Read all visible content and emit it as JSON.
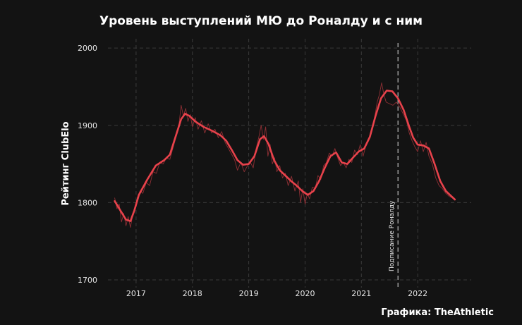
{
  "chart_data": {
    "type": "line",
    "title": "Уровень выступлений МЮ до Роналду и с ним",
    "xlabel": "",
    "ylabel": "Рейтинг ClubElo",
    "xlim": [
      2016.5,
      2022.95
    ],
    "ylim": [
      1690,
      2012
    ],
    "yticks": [
      1700,
      1800,
      1900,
      2000
    ],
    "xticks": [
      2017,
      2018,
      2019,
      2020,
      2021,
      2022
    ],
    "grid": true,
    "series": [
      {
        "kind": "smoothed",
        "color": "#e8424b",
        "points": [
          [
            2016.62,
            1802
          ],
          [
            2016.72,
            1790
          ],
          [
            2016.82,
            1778
          ],
          [
            2016.9,
            1776
          ],
          [
            2016.97,
            1790
          ],
          [
            2017.05,
            1810
          ],
          [
            2017.2,
            1830
          ],
          [
            2017.35,
            1848
          ],
          [
            2017.5,
            1855
          ],
          [
            2017.6,
            1862
          ],
          [
            2017.7,
            1885
          ],
          [
            2017.8,
            1908
          ],
          [
            2017.87,
            1915
          ],
          [
            2017.95,
            1912
          ],
          [
            2018.05,
            1905
          ],
          [
            2018.2,
            1898
          ],
          [
            2018.35,
            1893
          ],
          [
            2018.5,
            1887
          ],
          [
            2018.6,
            1880
          ],
          [
            2018.7,
            1868
          ],
          [
            2018.8,
            1855
          ],
          [
            2018.9,
            1849
          ],
          [
            2019.0,
            1850
          ],
          [
            2019.1,
            1860
          ],
          [
            2019.2,
            1882
          ],
          [
            2019.27,
            1886
          ],
          [
            2019.35,
            1876
          ],
          [
            2019.45,
            1855
          ],
          [
            2019.55,
            1842
          ],
          [
            2019.65,
            1835
          ],
          [
            2019.75,
            1828
          ],
          [
            2019.85,
            1822
          ],
          [
            2019.95,
            1815
          ],
          [
            2020.05,
            1810
          ],
          [
            2020.15,
            1815
          ],
          [
            2020.25,
            1828
          ],
          [
            2020.35,
            1845
          ],
          [
            2020.45,
            1860
          ],
          [
            2020.55,
            1865
          ],
          [
            2020.65,
            1852
          ],
          [
            2020.75,
            1850
          ],
          [
            2020.85,
            1858
          ],
          [
            2020.95,
            1866
          ],
          [
            2021.05,
            1870
          ],
          [
            2021.15,
            1885
          ],
          [
            2021.25,
            1912
          ],
          [
            2021.35,
            1935
          ],
          [
            2021.45,
            1945
          ],
          [
            2021.55,
            1944
          ],
          [
            2021.65,
            1935
          ],
          [
            2021.75,
            1920
          ],
          [
            2021.85,
            1898
          ],
          [
            2021.92,
            1884
          ],
          [
            2022.0,
            1875
          ],
          [
            2022.1,
            1874
          ],
          [
            2022.2,
            1870
          ],
          [
            2022.3,
            1850
          ],
          [
            2022.4,
            1828
          ],
          [
            2022.5,
            1815
          ],
          [
            2022.6,
            1808
          ],
          [
            2022.66,
            1804
          ]
        ]
      },
      {
        "kind": "raw",
        "color": "#a3353b",
        "points": [
          [
            2016.62,
            1806
          ],
          [
            2016.66,
            1792
          ],
          [
            2016.7,
            1798
          ],
          [
            2016.74,
            1775
          ],
          [
            2016.78,
            1786
          ],
          [
            2016.82,
            1770
          ],
          [
            2016.86,
            1782
          ],
          [
            2016.9,
            1768
          ],
          [
            2016.94,
            1784
          ],
          [
            2016.98,
            1790
          ],
          [
            2017.02,
            1806
          ],
          [
            2017.07,
            1815
          ],
          [
            2017.12,
            1812
          ],
          [
            2017.18,
            1826
          ],
          [
            2017.24,
            1822
          ],
          [
            2017.3,
            1840
          ],
          [
            2017.36,
            1838
          ],
          [
            2017.42,
            1852
          ],
          [
            2017.48,
            1850
          ],
          [
            2017.54,
            1858
          ],
          [
            2017.6,
            1856
          ],
          [
            2017.66,
            1872
          ],
          [
            2017.72,
            1888
          ],
          [
            2017.76,
            1900
          ],
          [
            2017.8,
            1926
          ],
          [
            2017.84,
            1912
          ],
          [
            2017.88,
            1922
          ],
          [
            2017.92,
            1905
          ],
          [
            2017.96,
            1914
          ],
          [
            2018.0,
            1898
          ],
          [
            2018.05,
            1910
          ],
          [
            2018.1,
            1895
          ],
          [
            2018.16,
            1906
          ],
          [
            2018.22,
            1890
          ],
          [
            2018.28,
            1902
          ],
          [
            2018.34,
            1890
          ],
          [
            2018.4,
            1895
          ],
          [
            2018.46,
            1884
          ],
          [
            2018.52,
            1892
          ],
          [
            2018.58,
            1878
          ],
          [
            2018.64,
            1870
          ],
          [
            2018.7,
            1862
          ],
          [
            2018.75,
            1855
          ],
          [
            2018.8,
            1842
          ],
          [
            2018.86,
            1852
          ],
          [
            2018.92,
            1840
          ],
          [
            2018.98,
            1848
          ],
          [
            2019.03,
            1852
          ],
          [
            2019.08,
            1845
          ],
          [
            2019.13,
            1870
          ],
          [
            2019.18,
            1885
          ],
          [
            2019.22,
            1900
          ],
          [
            2019.26,
            1882
          ],
          [
            2019.3,
            1898
          ],
          [
            2019.34,
            1860
          ],
          [
            2019.38,
            1875
          ],
          [
            2019.42,
            1850
          ],
          [
            2019.46,
            1858
          ],
          [
            2019.5,
            1840
          ],
          [
            2019.55,
            1848
          ],
          [
            2019.6,
            1832
          ],
          [
            2019.65,
            1838
          ],
          [
            2019.7,
            1822
          ],
          [
            2019.76,
            1834
          ],
          [
            2019.82,
            1815
          ],
          [
            2019.88,
            1828
          ],
          [
            2019.92,
            1800
          ],
          [
            2019.96,
            1818
          ],
          [
            2020.0,
            1798
          ],
          [
            2020.04,
            1812
          ],
          [
            2020.08,
            1805
          ],
          [
            2020.13,
            1820
          ],
          [
            2020.18,
            1818
          ],
          [
            2020.23,
            1835
          ],
          [
            2020.28,
            1830
          ],
          [
            2020.33,
            1848
          ],
          [
            2020.38,
            1852
          ],
          [
            2020.43,
            1864
          ],
          [
            2020.48,
            1860
          ],
          [
            2020.53,
            1870
          ],
          [
            2020.58,
            1858
          ],
          [
            2020.63,
            1848
          ],
          [
            2020.68,
            1852
          ],
          [
            2020.73,
            1845
          ],
          [
            2020.78,
            1856
          ],
          [
            2020.83,
            1852
          ],
          [
            2020.88,
            1868
          ],
          [
            2020.93,
            1862
          ],
          [
            2020.98,
            1875
          ],
          [
            2021.03,
            1860
          ],
          [
            2021.08,
            1874
          ],
          [
            2021.13,
            1880
          ],
          [
            2021.18,
            1895
          ],
          [
            2021.23,
            1908
          ],
          [
            2021.28,
            1930
          ],
          [
            2021.32,
            1940
          ],
          [
            2021.36,
            1955
          ],
          [
            2021.4,
            1940
          ],
          [
            2021.44,
            1930
          ],
          [
            2021.5,
            1928
          ],
          [
            2021.56,
            1926
          ],
          [
            2021.62,
            1930
          ],
          [
            2021.68,
            1924
          ],
          [
            2021.74,
            1915
          ],
          [
            2021.8,
            1906
          ],
          [
            2021.85,
            1890
          ],
          [
            2021.9,
            1880
          ],
          [
            2021.95,
            1872
          ],
          [
            2022.0,
            1866
          ],
          [
            2022.05,
            1880
          ],
          [
            2022.1,
            1866
          ],
          [
            2022.15,
            1878
          ],
          [
            2022.2,
            1860
          ],
          [
            2022.26,
            1850
          ],
          [
            2022.32,
            1832
          ],
          [
            2022.38,
            1822
          ],
          [
            2022.44,
            1818
          ],
          [
            2022.5,
            1812
          ],
          [
            2022.56,
            1808
          ],
          [
            2022.62,
            1806
          ],
          [
            2022.66,
            1804
          ]
        ]
      }
    ],
    "annotations": [
      {
        "x": 2021.65,
        "label": "Подписание Роналду",
        "style": "dashed vertical line"
      }
    ],
    "source": "Графика: TheAthletic"
  }
}
